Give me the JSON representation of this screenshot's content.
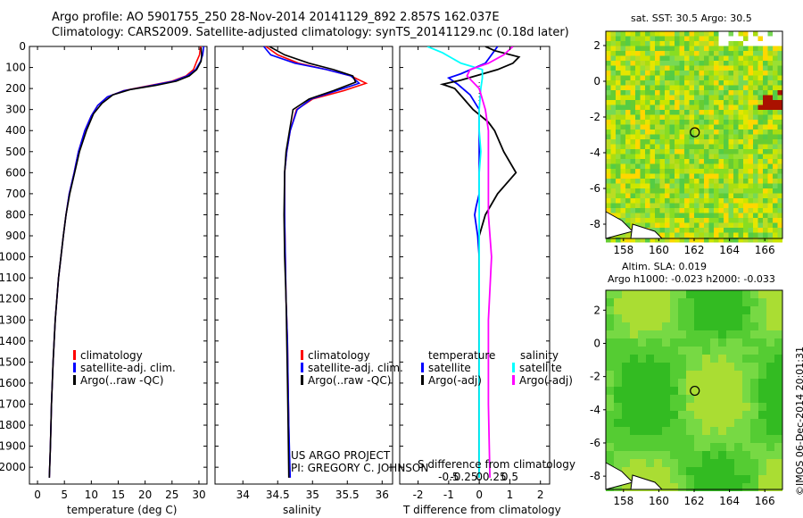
{
  "header": {
    "line1": "Argo profile: AO 5901755_250 28-Nov-2014 20141129_892 2.857S 162.037E",
    "line2": "Climatology: CARS2009. Satellite-adjusted climatology: synTS_20141129.nc (0.18d later)"
  },
  "colors": {
    "climatology": "#ff0000",
    "satellite_adj": "#0000ff",
    "argo": "#000000",
    "sal_satellite": "#00ffff",
    "sal_argo": "#ff00ff"
  },
  "depth_axis": {
    "ylim": [
      2080,
      0
    ],
    "ticks": [
      0,
      100,
      200,
      300,
      400,
      500,
      600,
      700,
      800,
      900,
      1000,
      1100,
      1200,
      1300,
      1400,
      1500,
      1600,
      1700,
      1800,
      1900,
      2000
    ]
  },
  "annotations": {
    "project_line1": "US ARGO PROJECT",
    "project_line2": "PI: GREGORY C. JOHNSON",
    "diff_legend_temp_header": "temperature",
    "diff_legend_sal_header": "salinity",
    "diff_legend_temp_sat": "satellite",
    "diff_legend_temp_argo": "Argo(-adj)",
    "diff_legend_sal_sat": "satellite",
    "diff_legend_sal_argo": "Argo(-adj)"
  },
  "chart_data": [
    {
      "type": "line",
      "id": "temperature",
      "xlabel": "temperature (deg C)",
      "xlim": [
        -1.5,
        31.5
      ],
      "xticks": [
        0,
        5,
        10,
        15,
        20,
        25,
        30
      ],
      "ylim": [
        2080,
        0
      ],
      "legend": [
        "climatology",
        "satellite-adj. clim.",
        "Argo(..raw -QC)"
      ],
      "series": [
        {
          "name": "climatology",
          "x": [
            30.3,
            30.1,
            29.6,
            29.0,
            27.6,
            25.0,
            20.0,
            16.0,
            13.0,
            11.2,
            10.0,
            8.8,
            7.6,
            6.8,
            5.9,
            5.3,
            4.8,
            3.9,
            3.3,
            2.9,
            2.6,
            2.4,
            2.2
          ],
          "y": [
            0,
            40,
            70,
            110,
            140,
            165,
            190,
            210,
            240,
            280,
            330,
            400,
            500,
            600,
            700,
            800,
            900,
            1100,
            1300,
            1500,
            1700,
            1900,
            2050
          ]
        },
        {
          "name": "satellite-adj. clim.",
          "x": [
            30.9,
            30.7,
            30.3,
            29.4,
            27.8,
            25.3,
            20.3,
            16.1,
            13.0,
            11.2,
            10.0,
            8.8,
            7.6,
            6.8,
            5.9,
            5.3,
            4.8,
            3.9,
            3.3,
            2.9,
            2.6,
            2.4,
            2.2
          ],
          "y": [
            0,
            40,
            70,
            110,
            140,
            165,
            190,
            210,
            240,
            280,
            330,
            400,
            500,
            600,
            700,
            800,
            900,
            1100,
            1300,
            1500,
            1700,
            1900,
            2050
          ]
        },
        {
          "name": "Argo(..raw -QC)",
          "x": [
            30.4,
            30.5,
            30.4,
            29.6,
            28.2,
            25.8,
            22.0,
            17.2,
            14.0,
            12.0,
            10.4,
            9.1,
            7.8,
            6.9,
            6.0,
            5.3,
            4.8,
            3.9,
            3.3,
            2.9,
            2.6,
            2.4,
            2.2
          ],
          "y": [
            5,
            40,
            70,
            110,
            140,
            165,
            185,
            205,
            230,
            270,
            320,
            400,
            500,
            600,
            700,
            800,
            900,
            1100,
            1300,
            1500,
            1700,
            1900,
            2050
          ]
        }
      ]
    },
    {
      "type": "line",
      "id": "salinity",
      "xlabel": "salinity",
      "xlim": [
        33.6,
        36.15
      ],
      "xticks": [
        34,
        34.5,
        35,
        35.5,
        36
      ],
      "xticklabels": [
        "34",
        "34.5",
        "35",
        "35.5",
        "36"
      ],
      "ylim": [
        2080,
        0
      ],
      "legend": [
        "climatology",
        "satellite-adj. clim.",
        "Argo(..raw -QC)"
      ],
      "series": [
        {
          "name": "climatology",
          "x": [
            34.33,
            34.5,
            34.8,
            35.2,
            35.55,
            35.77,
            35.45,
            35.0,
            34.77,
            34.68,
            34.63,
            34.6,
            34.6,
            34.61,
            34.62,
            34.64,
            34.65,
            34.66,
            34.67
          ],
          "y": [
            0,
            40,
            80,
            110,
            140,
            175,
            210,
            250,
            300,
            400,
            500,
            600,
            800,
            1000,
            1200,
            1400,
            1600,
            1800,
            2050
          ]
        },
        {
          "name": "satellite-adj. clim.",
          "x": [
            34.3,
            34.4,
            34.75,
            35.2,
            35.55,
            35.67,
            35.35,
            34.98,
            34.78,
            34.68,
            34.63,
            34.6,
            34.6,
            34.61,
            34.62,
            34.64,
            34.65,
            34.66,
            34.68
          ],
          "y": [
            0,
            40,
            80,
            110,
            140,
            175,
            210,
            250,
            300,
            400,
            500,
            600,
            800,
            1000,
            1200,
            1400,
            1600,
            1800,
            2050
          ]
        },
        {
          "name": "Argo(..raw -QC)",
          "x": [
            34.38,
            34.6,
            34.95,
            35.3,
            35.58,
            35.62,
            35.3,
            34.95,
            34.72,
            34.67,
            34.62,
            34.6,
            34.59,
            34.6,
            34.62,
            34.63,
            34.64,
            34.65,
            34.66
          ],
          "y": [
            0,
            40,
            80,
            110,
            140,
            170,
            210,
            250,
            300,
            400,
            500,
            600,
            800,
            1000,
            1200,
            1400,
            1600,
            1800,
            2050
          ]
        }
      ]
    },
    {
      "type": "line",
      "id": "difference",
      "xlabel": "T difference from climatology",
      "top_label": "S difference from climatology",
      "xlim": [
        -2.6,
        2.3
      ],
      "xticks_T": [
        -2,
        -1,
        0,
        1,
        2
      ],
      "xticks_S": [
        -0.5,
        -0.25,
        0,
        0.25,
        0.5
      ],
      "xticklabels_S": [
        "-0.5",
        "-0.25",
        "0",
        "0.25",
        "0.5"
      ],
      "ylim": [
        2080,
        0
      ],
      "series": [
        {
          "name": "temperature satellite",
          "x": [
            0.6,
            0.4,
            0.2,
            -0.6,
            -1.0,
            -0.7,
            -0.3,
            0.0,
            0.0,
            0.0,
            0.0,
            0.0,
            -0.1,
            -0.15,
            -0.05,
            0,
            0,
            0,
            0
          ],
          "y": [
            0,
            40,
            80,
            130,
            150,
            180,
            230,
            300,
            400,
            500,
            600,
            700,
            760,
            800,
            900,
            1000,
            1300,
            1600,
            2050
          ]
        },
        {
          "name": "temperature Argo(-adj)",
          "x": [
            0.2,
            0.5,
            1.3,
            1.1,
            0.6,
            -0.6,
            -1.2,
            -0.8,
            -0.5,
            -0.2,
            0.3,
            0.5,
            0.8,
            1.2,
            0.6,
            0.2,
            0.0,
            0.0,
            0.0,
            0.0
          ],
          "y": [
            0,
            20,
            50,
            80,
            110,
            160,
            180,
            200,
            250,
            300,
            360,
            400,
            500,
            600,
            700,
            800,
            900,
            1300,
            1600,
            2050
          ]
        },
        {
          "name": "salinity satellite",
          "x": [
            -1.7,
            -1.2,
            -0.6,
            0.1,
            0.1,
            0.05,
            0.0,
            0.0,
            0.05,
            0.0,
            0.0,
            0.0,
            0.0,
            0.0
          ],
          "y": [
            0,
            30,
            80,
            110,
            150,
            200,
            300,
            400,
            500,
            600,
            800,
            1200,
            1600,
            2050
          ]
        },
        {
          "name": "salinity Argo(-adj)",
          "x": [
            1.1,
            0.8,
            0.3,
            -0.3,
            -0.4,
            0.0,
            0.2,
            0.3,
            0.3,
            0.3,
            0.4,
            0.3,
            0.3,
            0.35
          ],
          "y": [
            0,
            40,
            80,
            110,
            140,
            200,
            300,
            400,
            600,
            800,
            1000,
            1300,
            1700,
            2050
          ]
        }
      ],
      "reference_line_x": 0
    },
    {
      "type": "heatmap",
      "id": "sst_map",
      "title": "sat. SST: 30.5  Argo: 30.5",
      "xlim": [
        157,
        167
      ],
      "ylim": [
        -8.8,
        2.8
      ],
      "xticks": [
        158,
        160,
        162,
        164,
        166
      ],
      "yticks": [
        2,
        0,
        -2,
        -4,
        -6,
        -8
      ],
      "marker": {
        "lon": 162.037,
        "lat": -2.857
      }
    },
    {
      "type": "heatmap",
      "id": "sla_map",
      "title1": "Altim. SLA: 0.019",
      "title2": "Argo h1000: -0.023 h2000: -0.033",
      "xlim": [
        157,
        167
      ],
      "ylim": [
        -8.8,
        3.2
      ],
      "xticks": [
        158,
        160,
        162,
        164,
        166
      ],
      "yticks": [
        2,
        0,
        -2,
        -4,
        -6,
        -8
      ],
      "marker": {
        "lon": 162.037,
        "lat": -2.857
      }
    }
  ],
  "footer": {
    "stamp": "©IMOS 06-Dec-2014 20:01:31"
  }
}
